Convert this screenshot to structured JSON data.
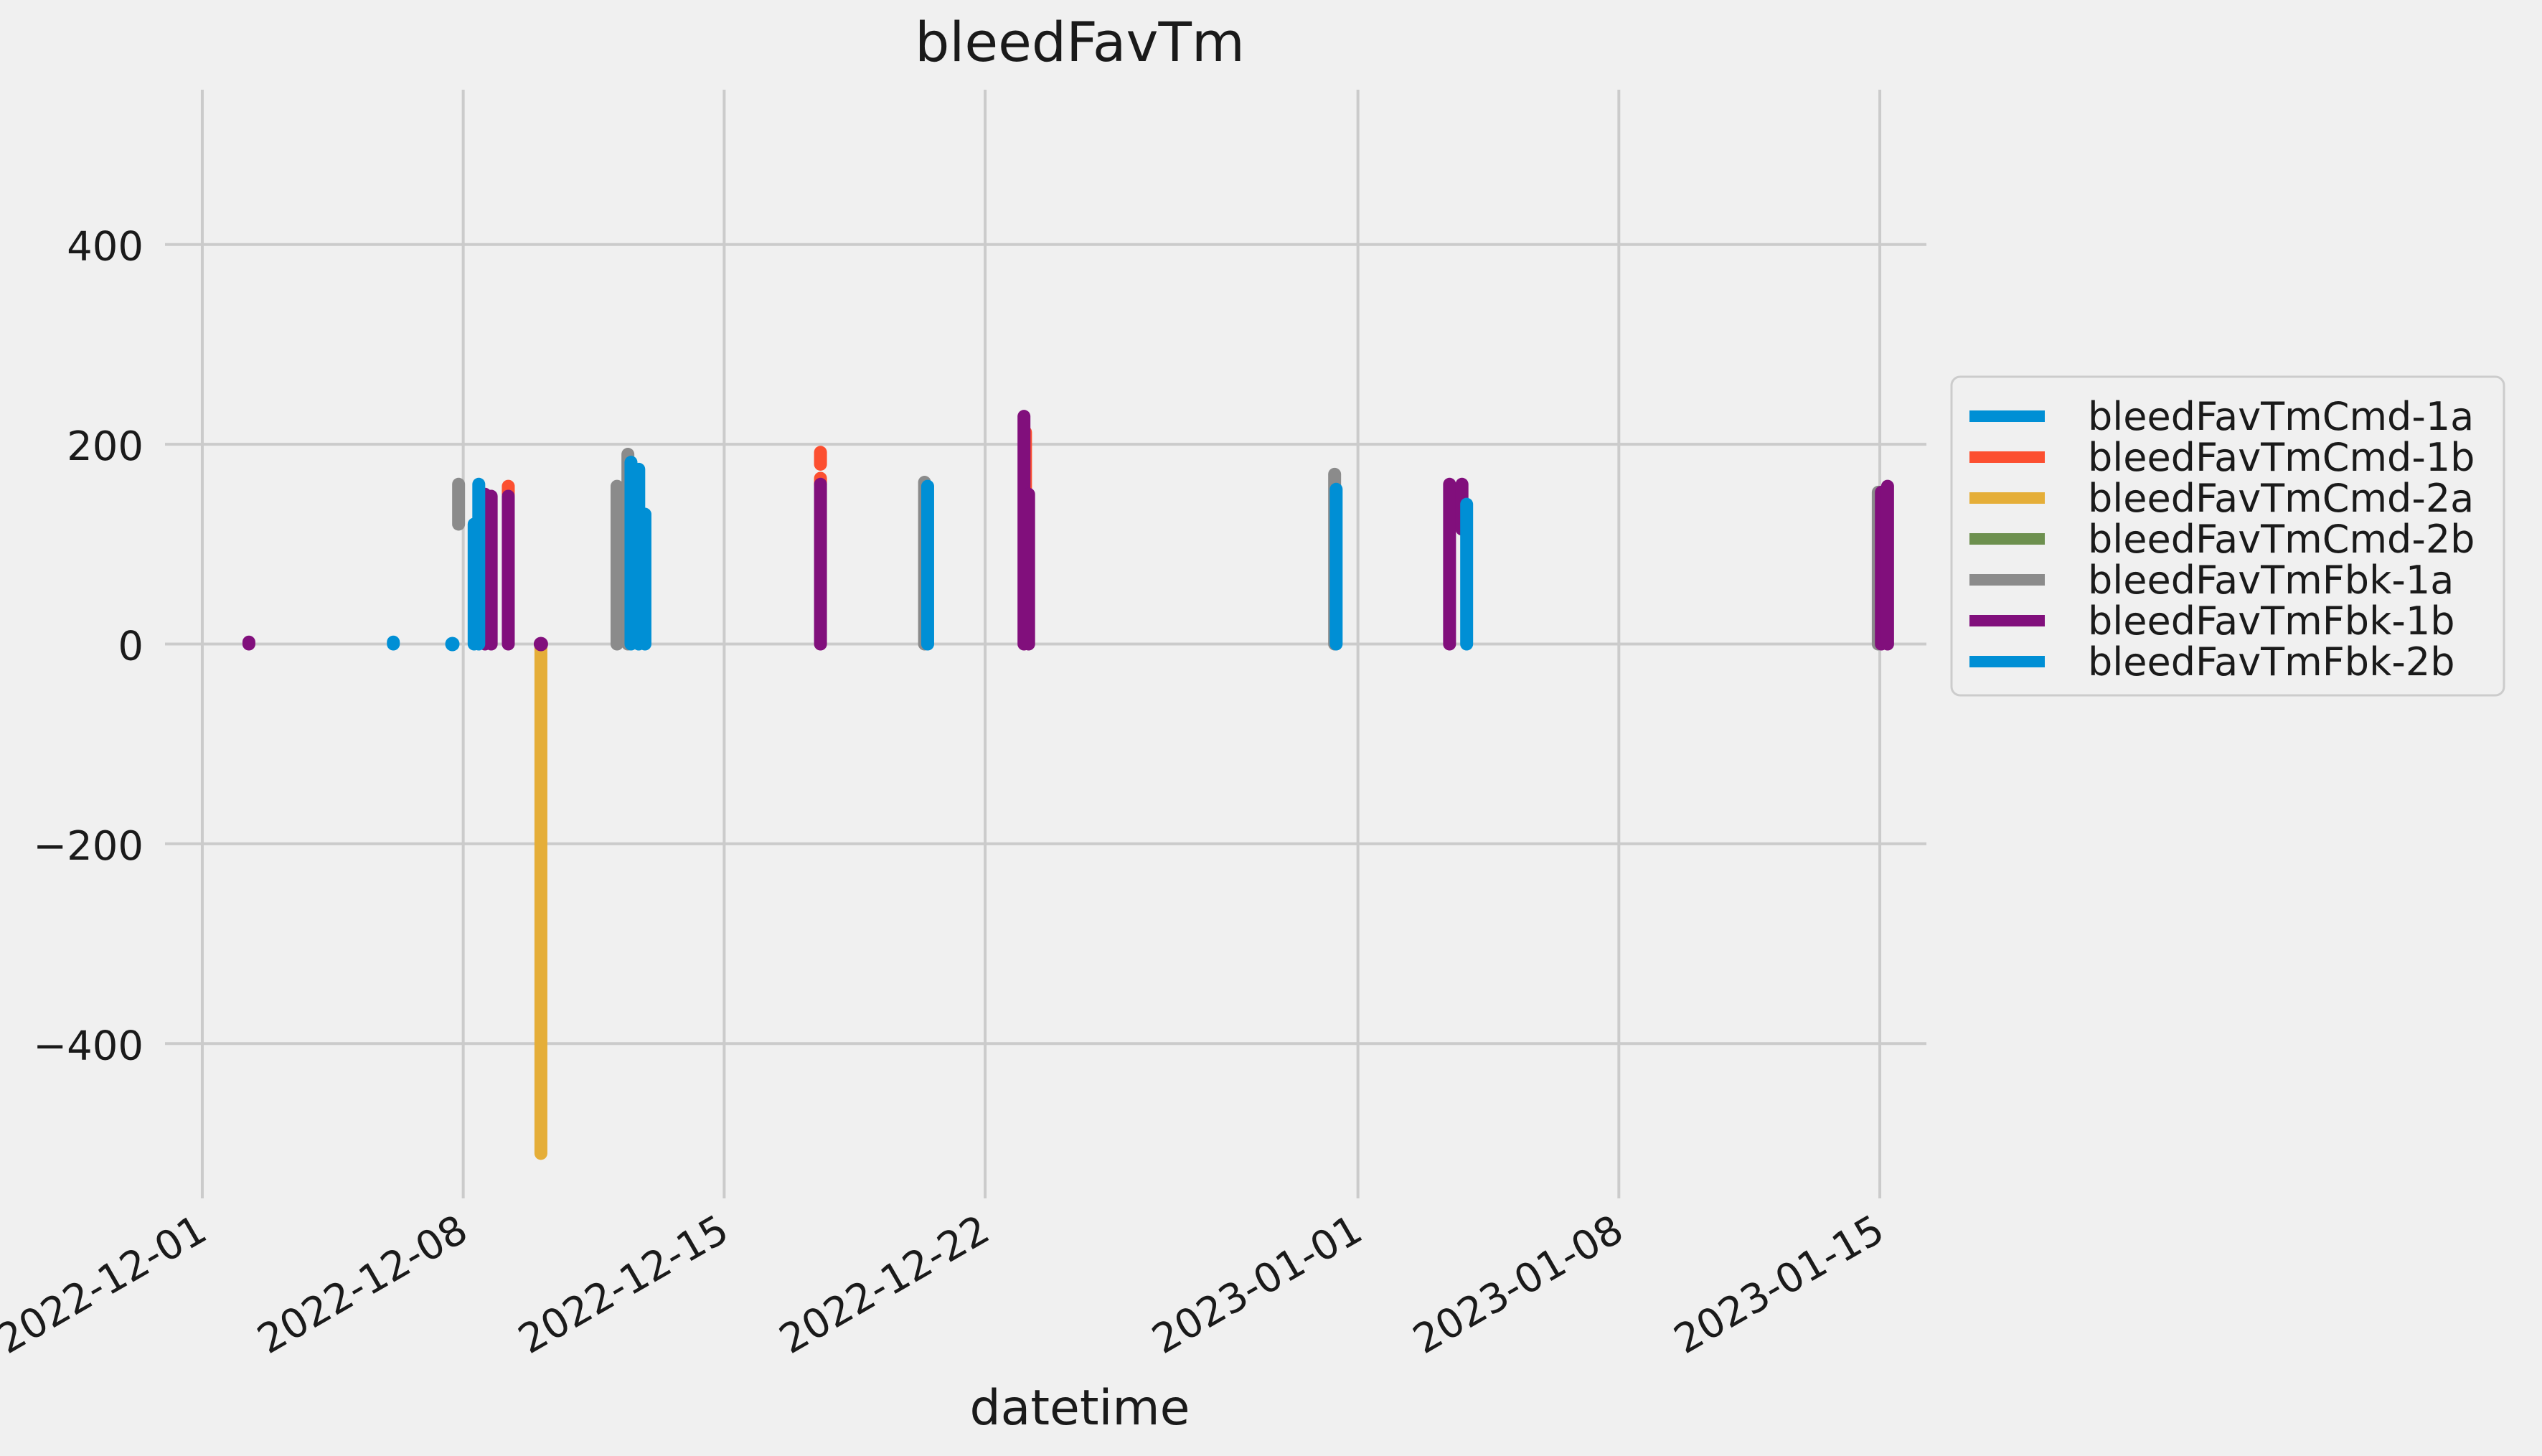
{
  "chart_data": {
    "type": "line",
    "title": "bleedFavTm",
    "xlabel": "datetime",
    "ylabel": "",
    "x_ticks": [
      "2022-12-01",
      "2022-12-08",
      "2022-12-15",
      "2022-12-22",
      "2023-01-01",
      "2023-01-08",
      "2023-01-15"
    ],
    "y_ticks": [
      400,
      200,
      0,
      -200,
      -400
    ],
    "y_tick_labels": [
      "400",
      "200",
      "0",
      "−200",
      "−400"
    ],
    "xlim": [
      "2022-11-30T00:00",
      "2023-01-16T06:00"
    ],
    "ylim": [
      -555,
      555
    ],
    "grid": true,
    "legend_position": "right",
    "series": [
      {
        "name": "bleedFavTmCmd-1a",
        "color": "#008fd5",
        "segments": [
          {
            "date": "2022-12-07T17:00",
            "min": 0,
            "max": 0
          },
          {
            "date": "2022-12-08T07:00",
            "min": 0,
            "max": 120
          },
          {
            "date": "2022-12-12T21:00",
            "min": 0,
            "max": 130
          }
        ]
      },
      {
        "name": "bleedFavTmCmd-1b",
        "color": "#fc4f30",
        "segments": [
          {
            "date": "2022-12-09T05:00",
            "min": 150,
            "max": 158
          },
          {
            "date": "2022-12-17T14:00",
            "min": 180,
            "max": 192
          },
          {
            "date": "2022-12-17T14:00",
            "min": 160,
            "max": 166
          },
          {
            "date": "2022-12-23T02:00",
            "min": 30,
            "max": 212
          }
        ]
      },
      {
        "name": "bleedFavTmCmd-2a",
        "color": "#e5ae38",
        "segments": [
          {
            "date": "2022-12-10T02:00",
            "min": -510,
            "max": 0
          }
        ]
      },
      {
        "name": "bleedFavTmCmd-2b",
        "color": "#6d904f",
        "segments": []
      },
      {
        "name": "bleedFavTmFbk-1a",
        "color": "#8b8b8b",
        "segments": [
          {
            "date": "2022-12-07T21:00",
            "min": 120,
            "max": 160
          },
          {
            "date": "2022-12-12T03:00",
            "min": 0,
            "max": 158
          },
          {
            "date": "2022-12-12T10:00",
            "min": 0,
            "max": 190
          },
          {
            "date": "2022-12-20T09:00",
            "min": 0,
            "max": 162
          },
          {
            "date": "2022-12-31T09:00",
            "min": 0,
            "max": 170
          },
          {
            "date": "2023-01-14T23:00",
            "min": 0,
            "max": 152
          }
        ]
      },
      {
        "name": "bleedFavTmFbk-1b",
        "color": "#810f7c",
        "segments": [
          {
            "date": "2022-12-02T06:00",
            "min": 0,
            "max": 2
          },
          {
            "date": "2022-12-08T14:00",
            "min": 0,
            "max": 150
          },
          {
            "date": "2022-12-08T18:00",
            "min": 0,
            "max": 148
          },
          {
            "date": "2022-12-09T05:00",
            "min": 0,
            "max": 148
          },
          {
            "date": "2022-12-10T02:00",
            "min": 0,
            "max": 0
          },
          {
            "date": "2022-12-17T14:00",
            "min": 0,
            "max": 160
          },
          {
            "date": "2022-12-23T01:00",
            "min": 0,
            "max": 228
          },
          {
            "date": "2022-12-23T04:00",
            "min": 0,
            "max": 150
          },
          {
            "date": "2023-01-03T11:00",
            "min": 0,
            "max": 160
          },
          {
            "date": "2023-01-03T19:00",
            "min": 115,
            "max": 160
          },
          {
            "date": "2023-01-15T01:00",
            "min": 0,
            "max": 152
          },
          {
            "date": "2023-01-15T05:00",
            "min": 0,
            "max": 158
          }
        ]
      },
      {
        "name": "bleedFavTmFbk-2b",
        "color": "#008fd5",
        "segments": [
          {
            "date": "2022-12-06T03:00",
            "min": 0,
            "max": 2
          },
          {
            "date": "2022-12-08T10:00",
            "min": 0,
            "max": 160
          },
          {
            "date": "2022-12-12T12:00",
            "min": 0,
            "max": 182
          },
          {
            "date": "2022-12-12T17:00",
            "min": 0,
            "max": 175
          },
          {
            "date": "2022-12-20T11:00",
            "min": 0,
            "max": 158
          },
          {
            "date": "2022-12-31T10:00",
            "min": 0,
            "max": 155
          },
          {
            "date": "2023-01-03T22:00",
            "min": 0,
            "max": 140
          }
        ]
      }
    ]
  }
}
